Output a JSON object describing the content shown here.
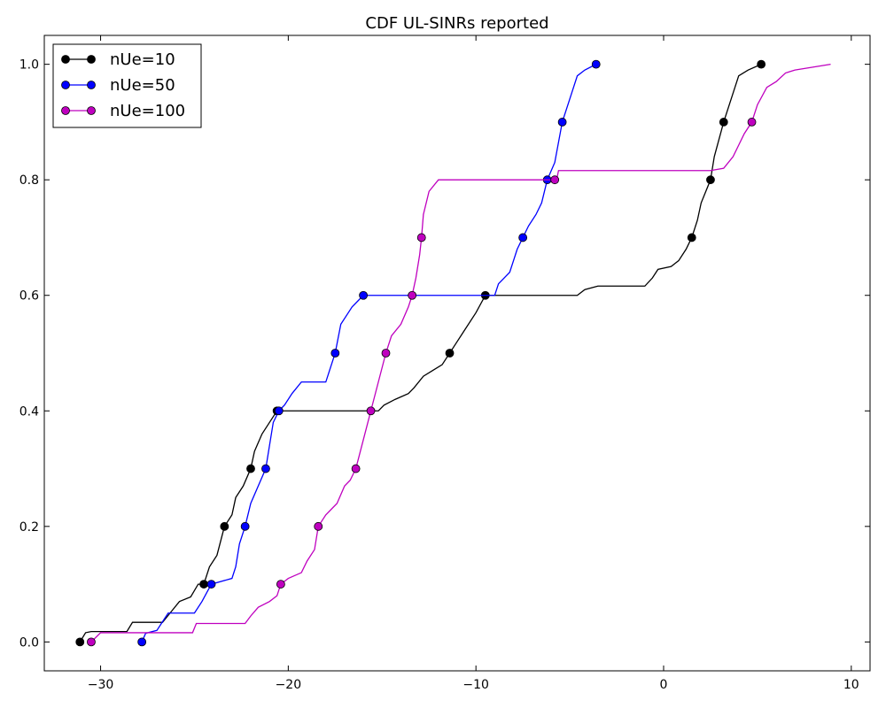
{
  "chart_data": {
    "type": "line",
    "title": "CDF UL-SINRs reported",
    "xlabel": "",
    "ylabel": "",
    "xlim": [
      -33,
      11
    ],
    "ylim": [
      -0.05,
      1.05
    ],
    "xticks": [
      -30,
      -20,
      -10,
      0,
      10
    ],
    "yticks": [
      0.0,
      0.2,
      0.4,
      0.6,
      0.8,
      1.0
    ],
    "xtick_labels": [
      "−30",
      "−20",
      "−10",
      "0",
      "10"
    ],
    "ytick_labels": [
      "0.0",
      "0.2",
      "0.4",
      "0.6",
      "0.8",
      "1.0"
    ],
    "grid": false,
    "legend": "top-left",
    "series": [
      {
        "name": "nUe=10",
        "color": "#000000",
        "line": [
          [
            -31.1,
            0.0
          ],
          [
            -30.8,
            0.016
          ],
          [
            -30.5,
            0.018
          ],
          [
            -28.6,
            0.018
          ],
          [
            -28.3,
            0.034
          ],
          [
            -26.7,
            0.034
          ],
          [
            -26.3,
            0.05
          ],
          [
            -25.8,
            0.07
          ],
          [
            -25.2,
            0.078
          ],
          [
            -24.8,
            0.1
          ],
          [
            -24.5,
            0.1
          ],
          [
            -24.2,
            0.13
          ],
          [
            -23.8,
            0.15
          ],
          [
            -23.4,
            0.2
          ],
          [
            -23.0,
            0.22
          ],
          [
            -22.8,
            0.25
          ],
          [
            -22.4,
            0.27
          ],
          [
            -22.0,
            0.3
          ],
          [
            -21.8,
            0.33
          ],
          [
            -21.4,
            0.36
          ],
          [
            -21.0,
            0.38
          ],
          [
            -20.6,
            0.4
          ],
          [
            -15.2,
            0.4
          ],
          [
            -14.9,
            0.41
          ],
          [
            -14.3,
            0.42
          ],
          [
            -13.6,
            0.43
          ],
          [
            -13.3,
            0.44
          ],
          [
            -12.8,
            0.46
          ],
          [
            -12.3,
            0.47
          ],
          [
            -11.8,
            0.48
          ],
          [
            -11.4,
            0.5
          ],
          [
            -11.0,
            0.52
          ],
          [
            -10.6,
            0.54
          ],
          [
            -10.0,
            0.57
          ],
          [
            -9.5,
            0.6
          ],
          [
            -4.6,
            0.6
          ],
          [
            -4.2,
            0.61
          ],
          [
            -3.5,
            0.616
          ],
          [
            -1.0,
            0.616
          ],
          [
            -0.6,
            0.63
          ],
          [
            -0.3,
            0.645
          ],
          [
            0.4,
            0.65
          ],
          [
            0.8,
            0.66
          ],
          [
            1.2,
            0.68
          ],
          [
            1.5,
            0.7
          ],
          [
            1.8,
            0.73
          ],
          [
            2.0,
            0.76
          ],
          [
            2.5,
            0.8
          ],
          [
            2.7,
            0.84
          ],
          [
            3.2,
            0.9
          ],
          [
            3.5,
            0.93
          ],
          [
            4.0,
            0.98
          ],
          [
            4.5,
            0.99
          ],
          [
            5.2,
            1.0
          ]
        ],
        "markers": [
          [
            -31.1,
            0.0
          ],
          [
            -24.5,
            0.1
          ],
          [
            -23.4,
            0.2
          ],
          [
            -22.0,
            0.3
          ],
          [
            -20.6,
            0.4
          ],
          [
            -11.4,
            0.5
          ],
          [
            -9.5,
            0.6
          ],
          [
            1.5,
            0.7
          ],
          [
            2.5,
            0.8
          ],
          [
            3.2,
            0.9
          ],
          [
            5.2,
            1.0
          ]
        ]
      },
      {
        "name": "nUe=50",
        "color": "#0000ff",
        "line": [
          [
            -27.8,
            0.0
          ],
          [
            -27.6,
            0.015
          ],
          [
            -27.0,
            0.02
          ],
          [
            -26.8,
            0.03
          ],
          [
            -26.4,
            0.05
          ],
          [
            -25.0,
            0.05
          ],
          [
            -24.6,
            0.07
          ],
          [
            -24.1,
            0.1
          ],
          [
            -23.0,
            0.11
          ],
          [
            -22.8,
            0.13
          ],
          [
            -22.6,
            0.17
          ],
          [
            -22.3,
            0.2
          ],
          [
            -22.0,
            0.24
          ],
          [
            -21.6,
            0.27
          ],
          [
            -21.2,
            0.3
          ],
          [
            -21.0,
            0.34
          ],
          [
            -20.8,
            0.38
          ],
          [
            -20.5,
            0.4
          ],
          [
            -20.2,
            0.41
          ],
          [
            -19.8,
            0.43
          ],
          [
            -19.3,
            0.45
          ],
          [
            -18.6,
            0.45
          ],
          [
            -18.0,
            0.45
          ],
          [
            -17.8,
            0.47
          ],
          [
            -17.5,
            0.5
          ],
          [
            -17.2,
            0.55
          ],
          [
            -16.8,
            0.57
          ],
          [
            -16.6,
            0.58
          ],
          [
            -16.3,
            0.59
          ],
          [
            -16.0,
            0.6
          ],
          [
            -9.0,
            0.6
          ],
          [
            -8.8,
            0.62
          ],
          [
            -8.5,
            0.63
          ],
          [
            -8.2,
            0.64
          ],
          [
            -8.0,
            0.66
          ],
          [
            -7.8,
            0.68
          ],
          [
            -7.5,
            0.7
          ],
          [
            -7.2,
            0.72
          ],
          [
            -6.8,
            0.74
          ],
          [
            -6.5,
            0.76
          ],
          [
            -6.2,
            0.8
          ],
          [
            -5.8,
            0.83
          ],
          [
            -5.4,
            0.9
          ],
          [
            -5.0,
            0.94
          ],
          [
            -4.6,
            0.98
          ],
          [
            -4.2,
            0.99
          ],
          [
            -3.6,
            1.0
          ]
        ],
        "markers": [
          [
            -27.8,
            0.0
          ],
          [
            -24.1,
            0.1
          ],
          [
            -22.3,
            0.2
          ],
          [
            -21.2,
            0.3
          ],
          [
            -20.5,
            0.4
          ],
          [
            -17.5,
            0.5
          ],
          [
            -16.0,
            0.6
          ],
          [
            -7.5,
            0.7
          ],
          [
            -6.2,
            0.8
          ],
          [
            -5.4,
            0.9
          ],
          [
            -3.6,
            1.0
          ]
        ]
      },
      {
        "name": "nUe=100",
        "color": "#bf00bf",
        "line": [
          [
            -30.5,
            0.0
          ],
          [
            -30.0,
            0.016
          ],
          [
            -29.0,
            0.016
          ],
          [
            -26.0,
            0.016
          ],
          [
            -25.1,
            0.016
          ],
          [
            -24.9,
            0.032
          ],
          [
            -22.3,
            0.032
          ],
          [
            -22.0,
            0.045
          ],
          [
            -21.6,
            0.06
          ],
          [
            -21.0,
            0.07
          ],
          [
            -20.6,
            0.08
          ],
          [
            -20.4,
            0.1
          ],
          [
            -20.0,
            0.11
          ],
          [
            -19.3,
            0.12
          ],
          [
            -19.0,
            0.14
          ],
          [
            -18.6,
            0.16
          ],
          [
            -18.4,
            0.2
          ],
          [
            -18.0,
            0.22
          ],
          [
            -17.4,
            0.24
          ],
          [
            -17.0,
            0.27
          ],
          [
            -16.7,
            0.28
          ],
          [
            -16.4,
            0.3
          ],
          [
            -16.0,
            0.35
          ],
          [
            -15.6,
            0.4
          ],
          [
            -15.2,
            0.45
          ],
          [
            -14.8,
            0.5
          ],
          [
            -14.5,
            0.53
          ],
          [
            -14.0,
            0.55
          ],
          [
            -13.6,
            0.58
          ],
          [
            -13.4,
            0.6
          ],
          [
            -13.2,
            0.63
          ],
          [
            -13.0,
            0.67
          ],
          [
            -12.9,
            0.7
          ],
          [
            -12.8,
            0.74
          ],
          [
            -12.5,
            0.78
          ],
          [
            -12.0,
            0.8
          ],
          [
            -6.0,
            0.8
          ],
          [
            -5.7,
            0.8
          ],
          [
            -5.6,
            0.816
          ],
          [
            2.5,
            0.816
          ],
          [
            3.2,
            0.82
          ],
          [
            3.7,
            0.84
          ],
          [
            4.0,
            0.86
          ],
          [
            4.3,
            0.88
          ],
          [
            4.7,
            0.9
          ],
          [
            5.0,
            0.93
          ],
          [
            5.5,
            0.96
          ],
          [
            6.0,
            0.97
          ],
          [
            6.5,
            0.985
          ],
          [
            7.0,
            0.99
          ],
          [
            8.9,
            1.0
          ]
        ],
        "markers": [
          [
            -30.5,
            0.0
          ],
          [
            -20.4,
            0.1
          ],
          [
            -18.4,
            0.2
          ],
          [
            -16.4,
            0.3
          ],
          [
            -15.6,
            0.4
          ],
          [
            -14.8,
            0.5
          ],
          [
            -13.4,
            0.6
          ],
          [
            -12.9,
            0.7
          ],
          [
            -5.8,
            0.8
          ],
          [
            4.7,
            0.9
          ]
        ]
      }
    ]
  }
}
